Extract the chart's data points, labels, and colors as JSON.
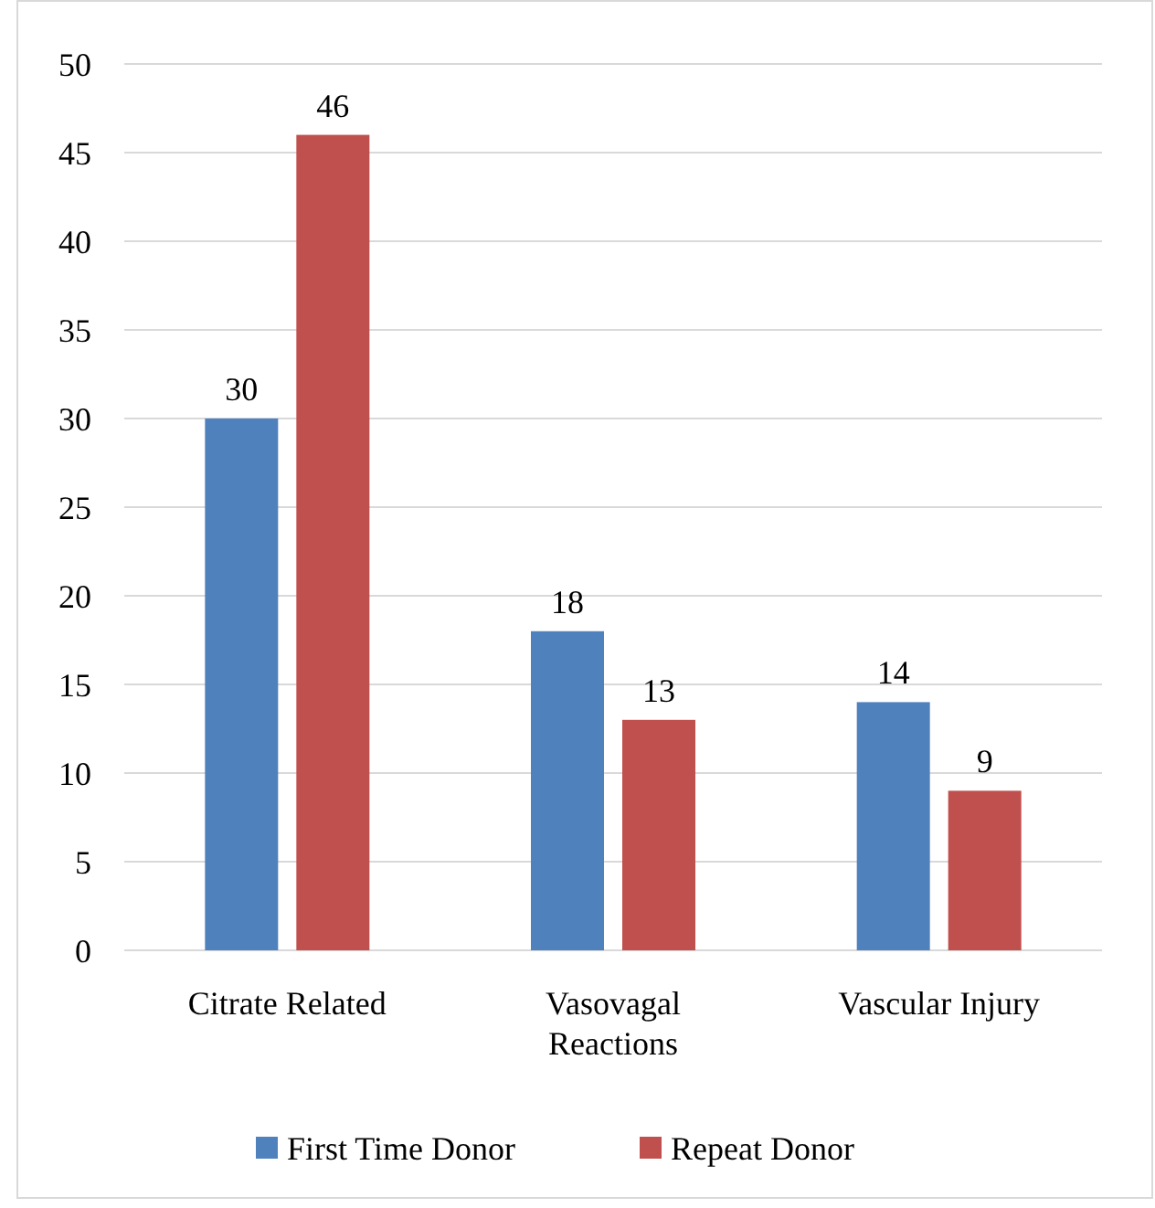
{
  "chart_data": {
    "type": "bar",
    "categories": [
      "Citrate Related",
      "Vasovagal Reactions",
      "Vascular Injury"
    ],
    "series": [
      {
        "name": "First Time Donor",
        "color": "#4f81bd",
        "values": [
          30,
          18,
          14
        ]
      },
      {
        "name": "Repeat Donor",
        "color": "#c0504d",
        "values": [
          46,
          13,
          9
        ]
      }
    ],
    "ylim": [
      0,
      50
    ],
    "yticks": [
      0,
      5,
      10,
      15,
      20,
      25,
      30,
      35,
      40,
      45,
      50
    ],
    "grid": "y",
    "legend": "bottom",
    "data_labels": true
  }
}
